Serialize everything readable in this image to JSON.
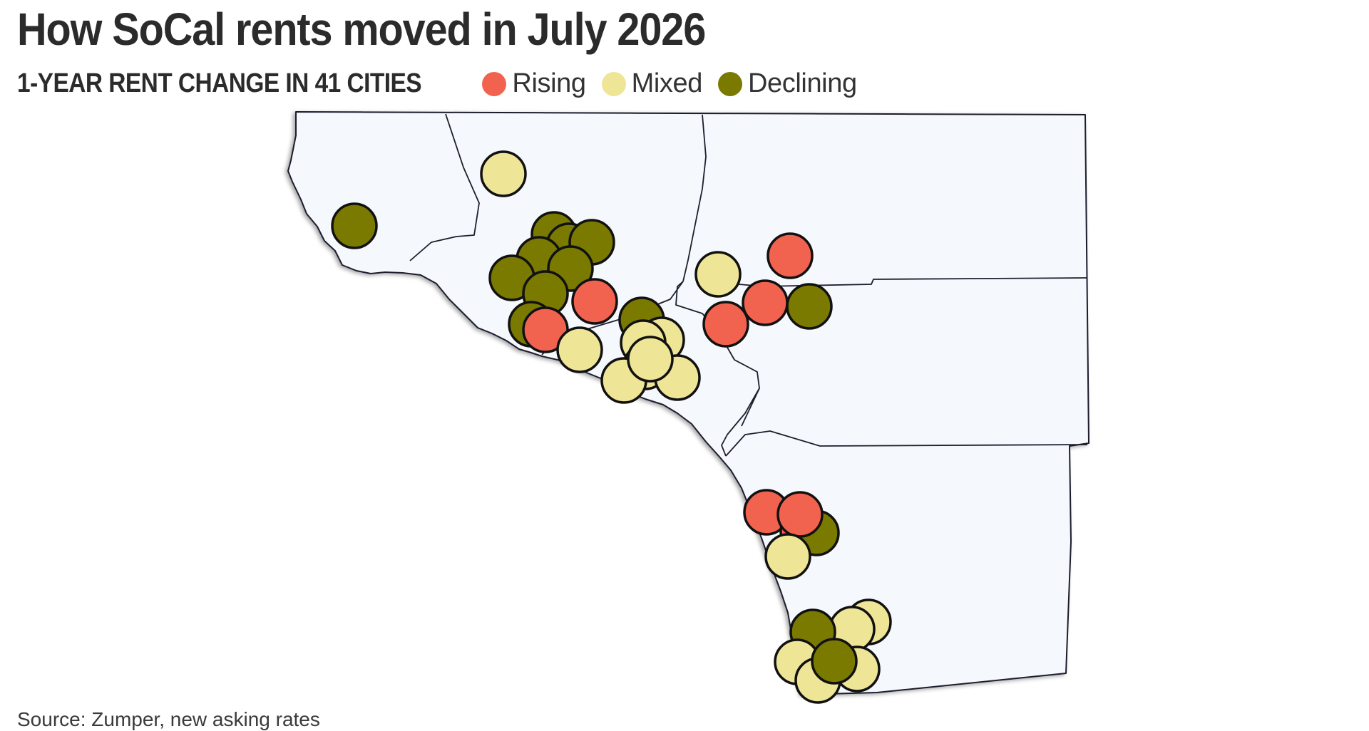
{
  "title": "How SoCal rents moved in July 2026",
  "subtitle": "1-YEAR RENT CHANGE IN 41 CITIES",
  "legend": [
    {
      "key": "rising",
      "label": "Rising",
      "color": "#f2634f"
    },
    {
      "key": "mixed",
      "label": "Mixed",
      "color": "#efe597"
    },
    {
      "key": "declining",
      "label": "Declining",
      "color": "#7a7a00"
    }
  ],
  "source": "Source: Zumper, new asking rates",
  "map": {
    "land_color": "#f5f8fc",
    "border_color": "#1e1e2e",
    "marker_stroke": "#111111"
  },
  "chart_data": {
    "type": "map",
    "title": "How SoCal rents moved in July 2026",
    "subtitle": "1-YEAR RENT CHANGE IN 41 CITIES",
    "categories": [
      "Rising",
      "Mixed",
      "Declining"
    ],
    "counts": {
      "Rising": 10,
      "Mixed": 17,
      "Declining": 14
    },
    "total_cities": 41
  }
}
